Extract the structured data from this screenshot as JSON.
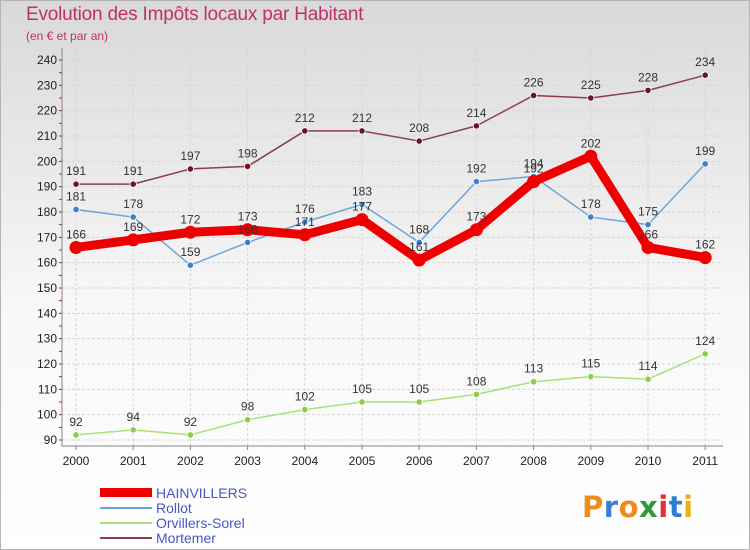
{
  "title": "Evolution des Impôts locaux par Habitant",
  "subtitle": "(en € et par an)",
  "logo": {
    "text": "Proxiti",
    "letters": [
      "P",
      "r",
      "o",
      "x",
      "i",
      "t",
      "i"
    ],
    "colors": [
      "#f08a1c",
      "#3a7fd0",
      "#f08a1c",
      "#2e9a3a",
      "#e0302f",
      "#2e7fd0",
      "#f0b010"
    ]
  },
  "chart_data": {
    "type": "line",
    "title": "Evolution des Impôts locaux par Habitant",
    "subtitle": "(en € et par an)",
    "xlabel": "",
    "ylabel": "",
    "ylim": [
      90,
      240
    ],
    "yticks": [
      90,
      100,
      110,
      120,
      130,
      140,
      150,
      160,
      170,
      180,
      190,
      200,
      210,
      220,
      230,
      240
    ],
    "categories": [
      "2000",
      "2001",
      "2002",
      "2003",
      "2004",
      "2005",
      "2006",
      "2007",
      "2008",
      "2009",
      "2010",
      "2011"
    ],
    "grid": true,
    "legend_position": "bottom-left",
    "series": [
      {
        "name": "HAINVILLERS",
        "values": [
          166,
          169,
          172,
          173,
          171,
          177,
          161,
          173,
          192,
          202,
          166,
          162
        ],
        "color": "#ee0000",
        "marker": "#ee0000",
        "style": "thick"
      },
      {
        "name": "Rollot",
        "values": [
          181,
          178,
          159,
          168,
          176,
          183,
          168,
          192,
          194,
          178,
          175,
          199
        ],
        "color": "#6fa4d6",
        "marker": "#3b7fd1",
        "style": "thin"
      },
      {
        "name": "Orvillers-Sorel",
        "values": [
          92,
          94,
          92,
          98,
          102,
          105,
          105,
          108,
          113,
          115,
          114,
          124
        ],
        "color": "#a8e07a",
        "marker": "#86cf47",
        "style": "thin"
      },
      {
        "name": "Mortemer",
        "values": [
          191,
          191,
          197,
          198,
          212,
          212,
          208,
          214,
          226,
          225,
          228,
          234
        ],
        "color": "#8a3e46",
        "marker": "#6b1422",
        "style": "thin"
      }
    ]
  }
}
